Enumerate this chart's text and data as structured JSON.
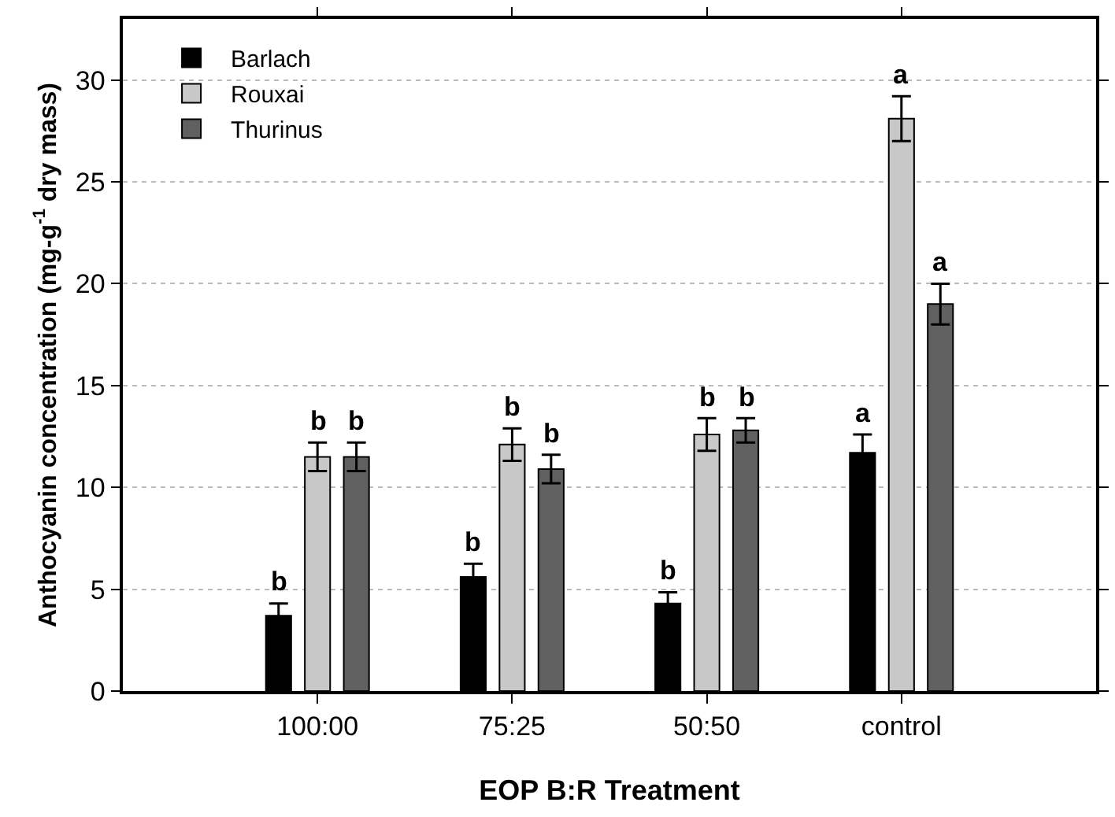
{
  "chart_data": {
    "type": "bar",
    "xlabel": "EOP B:R Treatment",
    "ylabel": "Anthocyanin concentration (mg-g$^{-1}$ dry mass)",
    "categories": [
      "100:00",
      "75:25",
      "50:50",
      "control"
    ],
    "series": [
      {
        "name": "Barlach",
        "color": "#000000",
        "values": [
          3.7,
          5.6,
          4.3,
          11.7
        ],
        "errors": [
          0.6,
          0.65,
          0.55,
          0.9
        ],
        "value_labels": [
          "b",
          "b",
          "b",
          "a"
        ]
      },
      {
        "name": "Rouxai",
        "color": "#c8c8c8",
        "values": [
          11.5,
          12.1,
          12.6,
          28.1
        ],
        "errors": [
          0.7,
          0.8,
          0.8,
          1.1
        ],
        "value_labels": [
          "b",
          "b",
          "b",
          "a"
        ]
      },
      {
        "name": "Thurinus",
        "color": "#606060",
        "values": [
          11.5,
          10.9,
          12.8,
          19.0
        ],
        "errors": [
          0.7,
          0.7,
          0.6,
          1.0
        ],
        "value_labels": [
          "b",
          "b",
          "b",
          "a"
        ]
      }
    ],
    "ylim": [
      0,
      33
    ],
    "yticks": [
      0,
      5,
      10,
      15,
      20,
      25,
      30
    ],
    "grid": "y",
    "legend": "top left"
  }
}
